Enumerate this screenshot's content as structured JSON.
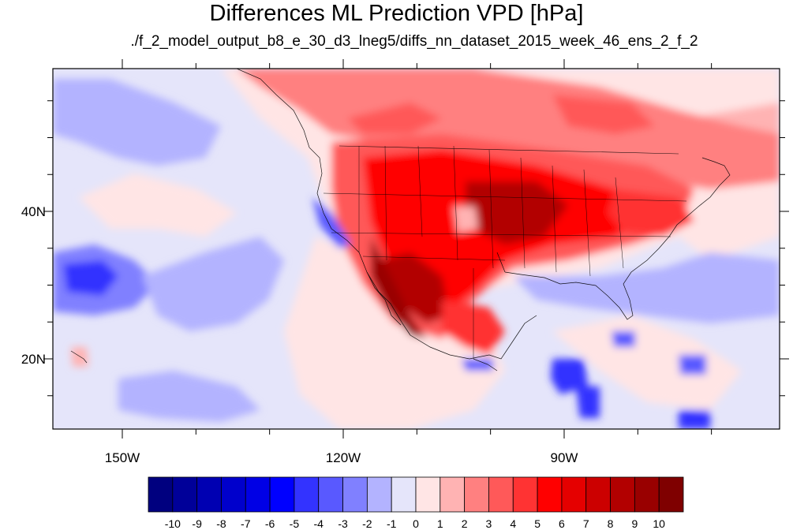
{
  "title": "Differences ML Prediction VPD [hPa]",
  "subtitle": "./f_2_model_output_b8_e_30_d3_lneg5/diffs_nn_dataset_2015_week_46_ens_2_f_2",
  "axes": {
    "lon_labels": [
      "150W",
      "120W",
      "90W"
    ],
    "lat_labels": [
      "40N",
      "20N"
    ]
  },
  "colorbar": {
    "labels": [
      "-10",
      "-9",
      "-8",
      "-7",
      "-6",
      "-5",
      "-4",
      "-3",
      "-2",
      "-1",
      "0",
      "1",
      "2",
      "3",
      "4",
      "5",
      "6",
      "7",
      "8",
      "9",
      "10"
    ],
    "colors": [
      "#00007f",
      "#000099",
      "#0000b2",
      "#0000cc",
      "#0000e5",
      "#0000ff",
      "#3333ff",
      "#5959ff",
      "#8080ff",
      "#b3b3ff",
      "#e5e5fa",
      "#ffe5e5",
      "#ffb3b3",
      "#ff8080",
      "#ff5959",
      "#ff3333",
      "#ff0000",
      "#e50000",
      "#cc0000",
      "#b20000",
      "#990000",
      "#7f0000"
    ]
  }
}
